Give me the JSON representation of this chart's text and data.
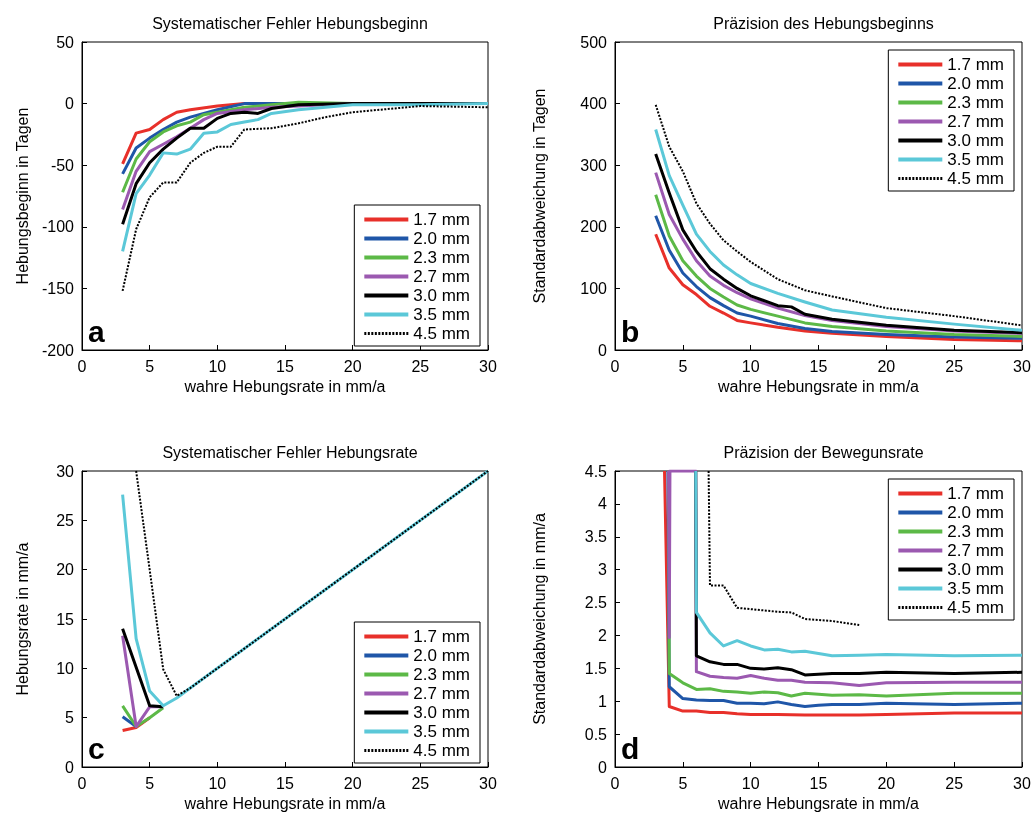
{
  "chart_data": [
    {
      "type": "line",
      "title": "Systematischer Fehler Hebungsbeginn",
      "xlabel": "wahre Hebungsrate in mm/a",
      "ylabel": "Hebungsbeginn in Tagen",
      "annotations": [
        "a"
      ],
      "xlim": [
        0,
        30
      ],
      "xticks": [
        0,
        5,
        10,
        15,
        20,
        25,
        30
      ],
      "ylim": [
        -200,
        50
      ],
      "yticks": [
        -200,
        -150,
        -100,
        -50,
        0,
        50
      ],
      "legend": "bottom right",
      "grid": false,
      "marker": "none",
      "line_style": "solid",
      "series": [
        {
          "name": "1.7 mm",
          "color": "#e8302a",
          "x": [
            3,
            4,
            5,
            6,
            7,
            8,
            10,
            12,
            16
          ],
          "values": [
            -49,
            -24,
            -21,
            -13,
            -7,
            -5,
            -2,
            0,
            0
          ]
        },
        {
          "name": "2.0 mm",
          "color": "#1f56a8",
          "x": [
            3,
            4,
            5,
            6,
            7,
            8,
            10,
            12,
            16
          ],
          "values": [
            -57,
            -36,
            -28,
            -21,
            -15,
            -11,
            -5,
            0,
            0
          ]
        },
        {
          "name": "2.3 mm",
          "color": "#5cb947",
          "x": [
            3,
            4,
            5,
            6,
            7,
            8,
            9,
            10,
            12,
            14,
            16,
            20,
            25,
            30
          ],
          "values": [
            -72,
            -45,
            -31,
            -23,
            -18,
            -15,
            -9,
            -7,
            -3,
            -1,
            1,
            0,
            0,
            0
          ]
        },
        {
          "name": "2.7 mm",
          "color": "#9b59b0",
          "x": [
            3,
            4,
            5,
            6,
            7,
            8,
            9,
            10,
            12,
            14,
            16,
            20
          ],
          "values": [
            -86,
            -55,
            -39,
            -33,
            -27,
            -20,
            -13,
            -8,
            -5,
            -3,
            -2,
            0
          ]
        },
        {
          "name": "3.0 mm",
          "color": "#000000",
          "x": [
            3,
            4,
            5,
            6,
            7,
            8,
            9,
            10,
            11,
            12,
            13,
            14,
            16,
            20,
            25,
            30
          ],
          "values": [
            -98,
            -65,
            -48,
            -37,
            -28,
            -20,
            -20,
            -12,
            -8,
            -7,
            -8,
            -4,
            -1,
            0,
            0,
            0
          ]
        },
        {
          "name": "3.5 mm",
          "color": "#5bc8d8",
          "x": [
            3,
            4,
            5,
            6,
            7,
            8,
            9,
            10,
            11,
            12,
            13,
            14,
            16,
            18,
            20,
            25,
            30
          ],
          "values": [
            -120,
            -73,
            -58,
            -40,
            -41,
            -37,
            -24,
            -23,
            -17,
            -15,
            -13,
            -8,
            -5,
            -3,
            -1,
            -1,
            0
          ]
        },
        {
          "name": "4.5 mm",
          "color": "#000000",
          "line_style": "dotted",
          "x": [
            3,
            4,
            5,
            6,
            7,
            8,
            9,
            10,
            11,
            12,
            14,
            16,
            18,
            20,
            25,
            30
          ],
          "values": [
            -152,
            -102,
            -76,
            -64,
            -64,
            -48,
            -40,
            -35,
            -35,
            -21,
            -20,
            -16,
            -11,
            -7,
            -2,
            -3
          ]
        }
      ]
    },
    {
      "type": "line",
      "title": "Präzision des Hebungsbeginns",
      "xlabel": "wahre Hebungsrate in mm/a",
      "ylabel": "Standardabweichung in Tagen",
      "annotations": [
        "b"
      ],
      "xlim": [
        0,
        30
      ],
      "xticks": [
        0,
        5,
        10,
        15,
        20,
        25,
        30
      ],
      "ylim": [
        0,
        500
      ],
      "yticks": [
        0,
        100,
        200,
        300,
        400,
        500
      ],
      "legend": "top right",
      "grid": false,
      "marker": "none",
      "line_style": "solid",
      "series": [
        {
          "name": "1.7 mm",
          "color": "#e8302a",
          "x": [
            3,
            4,
            5,
            6,
            7,
            8,
            9,
            10,
            12,
            14,
            16,
            20,
            25,
            30
          ],
          "values": [
            188,
            133,
            106,
            90,
            71,
            60,
            48,
            44,
            37,
            31,
            27,
            22,
            17,
            15
          ]
        },
        {
          "name": "2.0 mm",
          "color": "#1f56a8",
          "x": [
            3,
            4,
            5,
            6,
            7,
            8,
            9,
            10,
            12,
            14,
            16,
            20,
            25,
            30
          ],
          "values": [
            218,
            162,
            125,
            103,
            85,
            72,
            60,
            55,
            43,
            35,
            30,
            25,
            21,
            19
          ]
        },
        {
          "name": "2.3 mm",
          "color": "#5cb947",
          "x": [
            3,
            4,
            5,
            6,
            7,
            8,
            9,
            10,
            12,
            14,
            16,
            20,
            25,
            30
          ],
          "values": [
            252,
            185,
            145,
            120,
            100,
            86,
            73,
            66,
            55,
            44,
            38,
            31,
            25,
            22
          ]
        },
        {
          "name": "2.7 mm",
          "color": "#9b59b0",
          "x": [
            3,
            4,
            5,
            6,
            7,
            8,
            9,
            10,
            12,
            14,
            16,
            20,
            25,
            30
          ],
          "values": [
            288,
            220,
            180,
            145,
            120,
            105,
            93,
            83,
            68,
            56,
            48,
            38,
            31,
            27
          ]
        },
        {
          "name": "3.0 mm",
          "color": "#000000",
          "x": [
            3,
            4,
            5,
            6,
            7,
            8,
            9,
            10,
            12,
            13,
            14,
            16,
            20,
            25,
            30
          ],
          "values": [
            318,
            255,
            195,
            160,
            132,
            115,
            100,
            88,
            72,
            70,
            58,
            50,
            40,
            32,
            28
          ]
        },
        {
          "name": "3.5 mm",
          "color": "#5bc8d8",
          "x": [
            3,
            4,
            5,
            6,
            7,
            8,
            9,
            10,
            12,
            14,
            16,
            20,
            25,
            30
          ],
          "values": [
            358,
            283,
            235,
            188,
            160,
            138,
            122,
            108,
            92,
            78,
            65,
            53,
            42,
            32
          ]
        },
        {
          "name": "4.5 mm",
          "color": "#000000",
          "line_style": "dotted",
          "x": [
            3,
            4,
            5,
            6,
            7,
            8,
            9,
            10,
            12,
            14,
            16,
            20,
            25,
            30
          ],
          "values": [
            398,
            330,
            290,
            238,
            205,
            178,
            160,
            143,
            115,
            97,
            87,
            68,
            55,
            40
          ]
        }
      ]
    },
    {
      "type": "line",
      "title": "Systematischer Fehler Hebungsrate",
      "xlabel": "wahre Hebungsrate in mm/a",
      "ylabel": "Hebungsrate in mm/a",
      "annotations": [
        "c"
      ],
      "xlim": [
        0,
        30
      ],
      "xticks": [
        0,
        5,
        10,
        15,
        20,
        25,
        30
      ],
      "ylim": [
        0,
        30
      ],
      "yticks": [
        0,
        5,
        10,
        15,
        20,
        25,
        30
      ],
      "legend": "bottom right",
      "grid": false,
      "marker": "none",
      "line_style": "solid",
      "series": [
        {
          "name": "1.7 mm",
          "color": "#e8302a",
          "x": [
            3,
            4,
            5
          ],
          "values": [
            3.7,
            4,
            5
          ]
        },
        {
          "name": "2.0 mm",
          "color": "#1f56a8",
          "x": [
            3,
            4
          ],
          "values": [
            5.1,
            4.1
          ]
        },
        {
          "name": "2.3 mm",
          "color": "#5cb947",
          "x": [
            3,
            4,
            5,
            6
          ],
          "values": [
            6.2,
            4.1,
            5,
            6
          ]
        },
        {
          "name": "2.7 mm",
          "color": "#9b59b0",
          "x": [
            3,
            4,
            5,
            6
          ],
          "values": [
            13.3,
            4.1,
            6.1,
            6.1
          ]
        },
        {
          "name": "3.0 mm",
          "color": "#000000",
          "x": [
            3,
            4,
            5,
            6
          ],
          "values": [
            14,
            10.1,
            6.2,
            6.1
          ]
        },
        {
          "name": "3.5 mm",
          "color": "#5bc8d8",
          "x": [
            3,
            4,
            5,
            6,
            7,
            8,
            10,
            15,
            20,
            25,
            30
          ],
          "values": [
            27.6,
            13,
            7.7,
            6.2,
            7,
            8,
            10,
            15,
            20,
            25,
            30
          ]
        },
        {
          "name": "4.5 mm",
          "color": "#000000",
          "line_style": "dotted",
          "x": [
            4,
            5,
            6,
            7,
            8,
            10,
            15,
            20,
            25,
            30
          ],
          "values": [
            30,
            20,
            9.9,
            7.2,
            8,
            10,
            15,
            20,
            25,
            30
          ]
        }
      ]
    },
    {
      "type": "line",
      "title": "Präzision der Bewegunsrate",
      "xlabel": "wahre Hebungsrate in mm/a",
      "ylabel": "Standardabweichung in mm/a",
      "annotations": [
        "d"
      ],
      "xlim": [
        0,
        30
      ],
      "xticks": [
        0,
        5,
        10,
        15,
        20,
        25,
        30
      ],
      "ylim": [
        0,
        4.5
      ],
      "yticks": [
        0,
        0.5,
        1,
        1.5,
        2,
        2.5,
        3,
        3.5,
        4,
        4.5
      ],
      "legend": "top right",
      "grid": false,
      "marker": "none",
      "line_style": "solid",
      "series": [
        {
          "name": "1.7 mm",
          "color": "#e8302a",
          "x": [
            3.65,
            4,
            5,
            6,
            7,
            8,
            9,
            10,
            12,
            14,
            16,
            18,
            20,
            25,
            30
          ],
          "values": [
            4.5,
            0.92,
            0.85,
            0.85,
            0.83,
            0.83,
            0.81,
            0.8,
            0.8,
            0.79,
            0.79,
            0.79,
            0.8,
            0.82,
            0.82
          ]
        },
        {
          "name": "2.0 mm",
          "color": "#1f56a8",
          "x": [
            3.9,
            4,
            5,
            6,
            7,
            8,
            9,
            10,
            11,
            12,
            13,
            14,
            15,
            16,
            18,
            20,
            25,
            30
          ],
          "values": [
            4.5,
            1.22,
            1.04,
            1.02,
            1.01,
            1.01,
            0.97,
            0.97,
            0.96,
            0.99,
            0.95,
            0.92,
            0.94,
            0.95,
            0.95,
            0.97,
            0.95,
            0.97
          ]
        },
        {
          "name": "2.3 mm",
          "color": "#5cb947",
          "x": [
            3.95,
            4,
            5,
            6,
            7,
            8,
            9,
            10,
            11,
            12,
            13,
            14,
            16,
            18,
            20,
            25,
            30
          ],
          "values": [
            4.5,
            1.42,
            1.28,
            1.18,
            1.19,
            1.15,
            1.14,
            1.12,
            1.14,
            1.13,
            1.08,
            1.12,
            1.09,
            1.1,
            1.08,
            1.12,
            1.12
          ]
        },
        {
          "name": "2.7 mm",
          "color": "#9b59b0",
          "x": [
            3.95,
            4,
            4.05,
            5.95,
            6,
            7,
            8,
            9,
            10,
            11,
            12,
            13,
            14,
            16,
            18,
            20,
            25,
            30
          ],
          "values": [
            4.5,
            1.97,
            4.5,
            4.5,
            1.45,
            1.38,
            1.36,
            1.35,
            1.39,
            1.35,
            1.32,
            1.32,
            1.29,
            1.28,
            1.24,
            1.28,
            1.29,
            1.29
          ]
        },
        {
          "name": "3.0 mm",
          "color": "#000000",
          "x": [
            5.95,
            6,
            7,
            8,
            9,
            10,
            11,
            12,
            13,
            14,
            16,
            18,
            20,
            25,
            30
          ],
          "values": [
            4.5,
            1.69,
            1.6,
            1.56,
            1.56,
            1.5,
            1.49,
            1.51,
            1.48,
            1.4,
            1.42,
            1.42,
            1.44,
            1.42,
            1.44
          ]
        },
        {
          "name": "3.5 mm",
          "color": "#5bc8d8",
          "x": [
            5.95,
            6,
            7,
            8,
            9,
            10,
            11,
            12,
            13,
            14,
            16,
            18,
            20,
            25,
            30
          ],
          "values": [
            4.5,
            2.35,
            2.04,
            1.84,
            1.92,
            1.84,
            1.78,
            1.79,
            1.75,
            1.76,
            1.69,
            1.7,
            1.71,
            1.69,
            1.7
          ]
        },
        {
          "name": "4.5 mm",
          "color": "#000000",
          "line_style": "dotted",
          "x": [
            6.9,
            7,
            8,
            9,
            10,
            12,
            13,
            14,
            16,
            18
          ],
          "values": [
            4.5,
            2.76,
            2.76,
            2.42,
            2.4,
            2.36,
            2.35,
            2.25,
            2.22,
            2.16
          ]
        }
      ]
    }
  ]
}
